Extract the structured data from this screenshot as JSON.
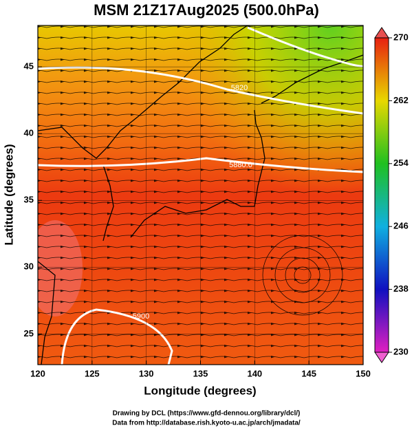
{
  "map": {
    "title": "MSM 21Z17Aug2025 (500.0hPa)",
    "xlabel": "Longitude (degrees)",
    "ylabel": "Latitude  (degrees)",
    "xlim": [
      120,
      150
    ],
    "ylim": [
      22.7,
      48.1
    ],
    "xticks": [
      120,
      125,
      130,
      135,
      140,
      145,
      150
    ],
    "yticks": [
      25,
      30,
      35,
      40,
      45
    ],
    "colorbar": {
      "lim": [
        230,
        270
      ],
      "ticks": [
        230,
        238,
        246,
        254,
        262,
        270
      ]
    },
    "contour_labels": [
      "5820",
      "5880.0",
      "5900"
    ],
    "footer": [
      "Drawing by DCL (https://www.gfd-dennou.org/library/dcl/)",
      "Data from http://database.rish.kyoto-u.ac.jp/arch/jmadata/"
    ]
  }
}
